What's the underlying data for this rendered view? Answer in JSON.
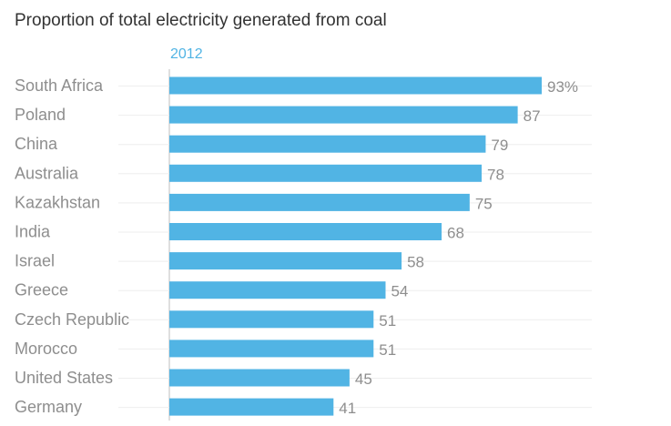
{
  "chart_data": {
    "type": "bar",
    "orientation": "horizontal",
    "title": "Proportion of total electricity generated from coal",
    "series_label": "2012",
    "bar_color": "#51b4e4",
    "categories": [
      "South Africa",
      "Poland",
      "China",
      "Australia",
      "Kazakhstan",
      "India",
      "Israel",
      "Greece",
      "Czech Republic",
      "Morocco",
      "United States",
      "Germany"
    ],
    "values": [
      93,
      87,
      79,
      78,
      75,
      68,
      58,
      54,
      51,
      51,
      45,
      41
    ],
    "value_labels": [
      "93%",
      "87",
      "79",
      "78",
      "75",
      "68",
      "58",
      "54",
      "51",
      "51",
      "45",
      "41"
    ],
    "xlim": [
      0,
      100
    ],
    "grid": false
  }
}
